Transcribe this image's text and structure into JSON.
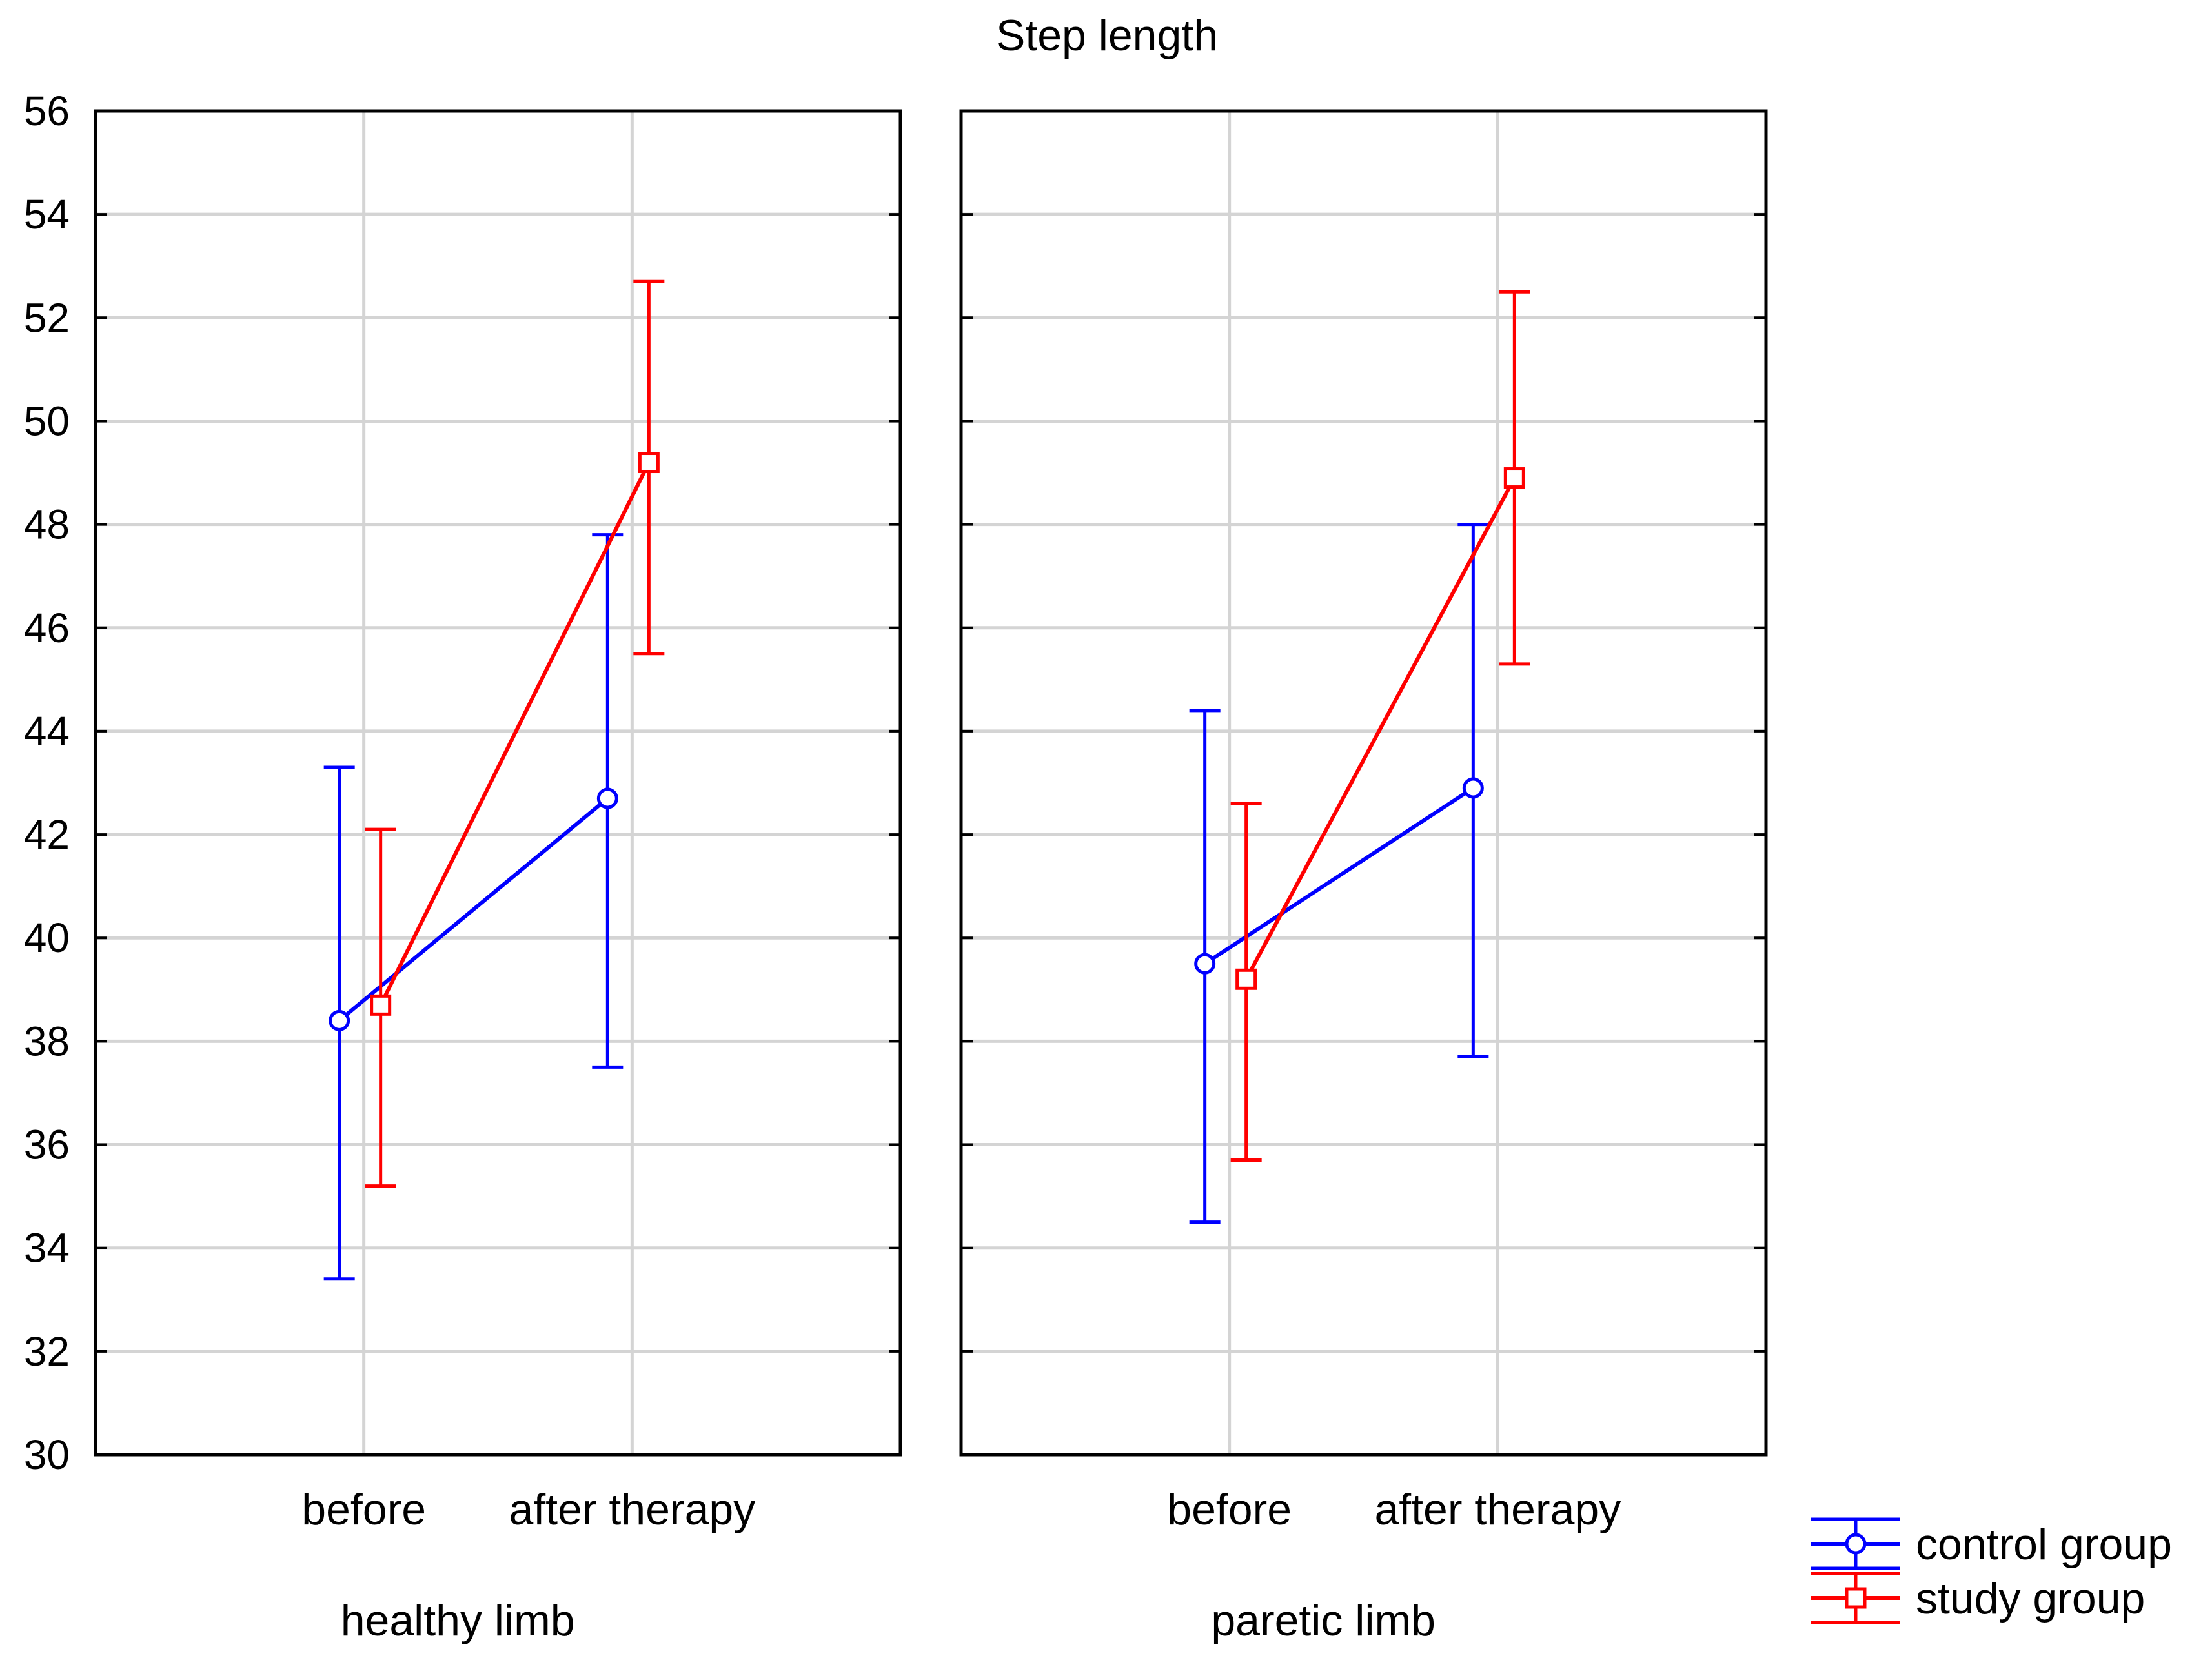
{
  "chart_data": {
    "type": "line",
    "title": "Step length",
    "ylabel": "",
    "ylim": [
      30,
      56
    ],
    "yticks": [
      30,
      32,
      34,
      36,
      38,
      40,
      42,
      44,
      46,
      48,
      50,
      52,
      54,
      56
    ],
    "categories": [
      "before",
      "after therapy"
    ],
    "grid": true,
    "legend_position": "bottom-right",
    "series_styles": [
      {
        "name": "control group",
        "color": "#0000ff",
        "marker": "circle"
      },
      {
        "name": "study group",
        "color": "#ff0000",
        "marker": "square"
      }
    ],
    "panels": [
      {
        "label": "healthy limb",
        "series": [
          {
            "name": "control group",
            "values": [
              38.4,
              42.7
            ],
            "lower": [
              33.4,
              37.5
            ],
            "upper": [
              43.3,
              47.8
            ]
          },
          {
            "name": "study group",
            "values": [
              38.7,
              49.2
            ],
            "lower": [
              35.2,
              45.5
            ],
            "upper": [
              42.1,
              52.7
            ]
          }
        ]
      },
      {
        "label": "paretic limb",
        "series": [
          {
            "name": "control group",
            "values": [
              39.5,
              42.9
            ],
            "lower": [
              34.5,
              37.7
            ],
            "upper": [
              44.4,
              48.0
            ]
          },
          {
            "name": "study group",
            "values": [
              39.2,
              48.9
            ],
            "lower": [
              35.7,
              45.3
            ],
            "upper": [
              42.6,
              52.5
            ]
          }
        ]
      }
    ]
  }
}
